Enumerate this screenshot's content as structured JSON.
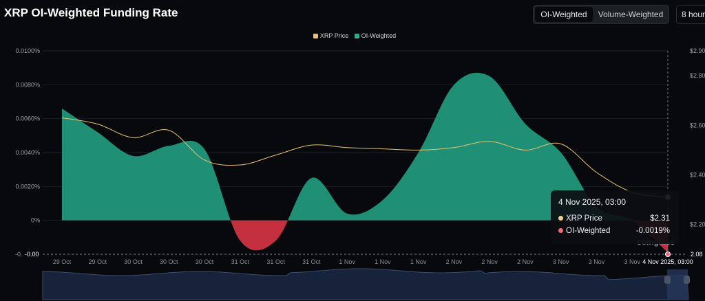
{
  "header": {
    "title": "XRP OI-Weighted Funding Rate",
    "toggle": [
      "OI-Weighted",
      "Volume-Weighted"
    ],
    "active_toggle": "OI-Weighted",
    "period": "8 hour"
  },
  "colors": {
    "price": "#e8c468",
    "positive": "#1f8f75",
    "negative": "#c4303d",
    "background": "#07090c"
  },
  "tooltip": {
    "date": "4 Nov 2025, 03:00",
    "price_label": "XRP Price",
    "price_value": "$2.31",
    "oi_label": "OI-Weighted",
    "oi_value": "-0.0019%"
  },
  "chart_data": {
    "type": "area",
    "title": "XRP OI-Weighted Funding Rate",
    "legend": [
      "XRP Price",
      "OI-Weighted"
    ],
    "legend_position": "top",
    "categories": [
      "29 Oct",
      "29 Oct",
      "30 Oct",
      "30 Oct",
      "30 Oct",
      "31 Oct",
      "31 Oct",
      "31 Oct",
      "1 Nov",
      "1 Nov",
      "1 Nov",
      "2 Nov",
      "2 Nov",
      "2 Nov",
      "3 Nov",
      "3 Nov",
      "3 Nov",
      "4 Nov 2025, 03:00"
    ],
    "series": [
      {
        "name": "OI-Weighted",
        "axis": "left",
        "unit": "%",
        "values": [
          0.0066,
          0.0052,
          0.0038,
          0.0044,
          0.0042,
          -0.0012,
          -0.0012,
          0.0025,
          0.0004,
          0.0012,
          0.004,
          0.008,
          0.0085,
          0.0057,
          0.004,
          0.0008,
          0.0,
          -0.0019
        ]
      },
      {
        "name": "XRP Price",
        "axis": "right",
        "unit": "$",
        "values": [
          2.63,
          2.605,
          2.55,
          2.58,
          2.46,
          2.44,
          2.48,
          2.52,
          2.51,
          2.505,
          2.5,
          2.51,
          2.535,
          2.5,
          2.525,
          2.41,
          2.33,
          2.31
        ]
      }
    ],
    "left_ticks": [
      "0.0100%",
      "0.0080%",
      "0.0060%",
      "0.0040%",
      "0.0020%",
      "0%"
    ],
    "left_tick_values": [
      0.01,
      0.008,
      0.006,
      0.004,
      0.002,
      0
    ],
    "left_crosshair_label": "-0.00",
    "right_ticks": [
      "$2.90",
      "$2.80",
      "$2.60",
      "$2.40",
      "$2.20"
    ],
    "right_tick_values": [
      2.9,
      2.8,
      2.6,
      2.4,
      2.2
    ],
    "right_crosshair_label": "2.08",
    "ylim_left": [
      -0.002,
      0.01
    ],
    "ylim_right": [
      2.08,
      2.9
    ],
    "grid": true,
    "watermark": "coinglass"
  }
}
